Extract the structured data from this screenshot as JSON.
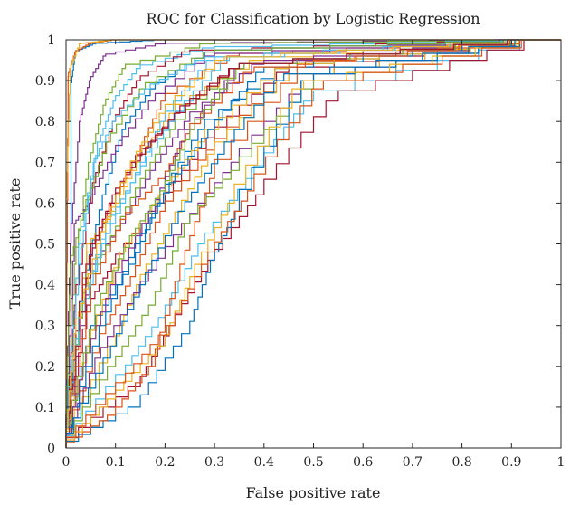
{
  "chart_data": {
    "type": "line",
    "title": "ROC for Classification by Logistic Regression",
    "xlabel": "False positive rate",
    "ylabel": "True positive rate",
    "xlim": [
      0,
      1
    ],
    "ylim": [
      0,
      1
    ],
    "x_ticks": [
      "0",
      "0.1",
      "0.2",
      "0.3",
      "0.4",
      "0.5",
      "0.6",
      "0.7",
      "0.8",
      "0.9",
      "1"
    ],
    "y_ticks": [
      "0",
      "0.1",
      "0.2",
      "0.3",
      "0.4",
      "0.5",
      "0.6",
      "0.7",
      "0.8",
      "0.9",
      "1"
    ],
    "grid": false,
    "legend": "none",
    "palette": [
      "#0072BD",
      "#D95319",
      "#EDB120",
      "#7E2F8E",
      "#77AC30",
      "#4DBEEE",
      "#A2142F"
    ],
    "series": [
      {
        "x": [
          0,
          0.01,
          0.01,
          0.02,
          0.06,
          0.2,
          1
        ],
        "y": [
          0,
          0.5,
          0.88,
          0.97,
          0.99,
          1,
          1
        ]
      },
      {
        "x": [
          0,
          0.005,
          0.02,
          0.05,
          0.1,
          1
        ],
        "y": [
          0,
          0.91,
          0.97,
          0.99,
          1,
          1
        ]
      },
      {
        "x": [
          0,
          0,
          0.01,
          0.03,
          0.1,
          1
        ],
        "y": [
          0,
          0.55,
          0.93,
          0.99,
          1,
          1
        ]
      },
      {
        "x": [
          0,
          0.01,
          0.03,
          0.05,
          0.08,
          0.2,
          1
        ],
        "y": [
          0,
          0.5,
          0.8,
          0.9,
          0.96,
          0.99,
          1
        ]
      },
      {
        "x": [
          0,
          0.02,
          0.05,
          0.08,
          0.12,
          0.3,
          1
        ],
        "y": [
          0,
          0.45,
          0.7,
          0.84,
          0.93,
          0.99,
          1
        ]
      },
      {
        "x": [
          0,
          0.03,
          0.07,
          0.1,
          0.15,
          0.3,
          1
        ],
        "y": [
          0,
          0.5,
          0.75,
          0.85,
          0.93,
          0.98,
          1
        ]
      },
      {
        "x": [
          0,
          0.02,
          0.06,
          0.1,
          0.15,
          0.25,
          1
        ],
        "y": [
          0,
          0.35,
          0.65,
          0.8,
          0.9,
          0.97,
          1
        ]
      },
      {
        "x": [
          0,
          0.04,
          0.08,
          0.12,
          0.18,
          0.3,
          1
        ],
        "y": [
          0,
          0.4,
          0.62,
          0.78,
          0.88,
          0.97,
          1
        ]
      },
      {
        "x": [
          0,
          0.05,
          0.1,
          0.15,
          0.2,
          0.35,
          1
        ],
        "y": [
          0,
          0.48,
          0.6,
          0.72,
          0.85,
          0.96,
          1
        ]
      },
      {
        "x": [
          0,
          0.05,
          0.1,
          0.15,
          0.22,
          0.4,
          1
        ],
        "y": [
          0,
          0.5,
          0.58,
          0.7,
          0.82,
          0.95,
          1
        ]
      },
      {
        "x": [
          0,
          0.06,
          0.12,
          0.18,
          0.25,
          0.4,
          1
        ],
        "y": [
          0,
          0.45,
          0.55,
          0.68,
          0.8,
          0.94,
          1
        ]
      },
      {
        "x": [
          0,
          0.04,
          0.1,
          0.16,
          0.22,
          0.35,
          1
        ],
        "y": [
          0,
          0.38,
          0.52,
          0.66,
          0.78,
          0.93,
          1
        ]
      },
      {
        "x": [
          0,
          0.03,
          0.08,
          0.14,
          0.2,
          0.3,
          1
        ],
        "y": [
          0,
          0.3,
          0.5,
          0.65,
          0.8,
          0.95,
          1
        ]
      },
      {
        "x": [
          0,
          0.05,
          0.1,
          0.2,
          0.3,
          0.45,
          1
        ],
        "y": [
          0,
          0.35,
          0.45,
          0.6,
          0.76,
          0.92,
          1
        ]
      },
      {
        "x": [
          0,
          0.06,
          0.14,
          0.2,
          0.28,
          0.45,
          1
        ],
        "y": [
          0,
          0.3,
          0.45,
          0.62,
          0.78,
          0.93,
          1
        ]
      },
      {
        "x": [
          0,
          0.08,
          0.14,
          0.2,
          0.3,
          0.45,
          1
        ],
        "y": [
          0,
          0.28,
          0.42,
          0.58,
          0.73,
          0.9,
          1
        ]
      },
      {
        "x": [
          0,
          0.1,
          0.15,
          0.22,
          0.3,
          0.45,
          1
        ],
        "y": [
          0,
          0.25,
          0.4,
          0.55,
          0.72,
          0.9,
          1
        ]
      },
      {
        "x": [
          0,
          0.07,
          0.15,
          0.25,
          0.35,
          0.5,
          1
        ],
        "y": [
          0,
          0.22,
          0.38,
          0.55,
          0.7,
          0.9,
          1
        ]
      },
      {
        "x": [
          0,
          0.1,
          0.18,
          0.25,
          0.35,
          0.5,
          1
        ],
        "y": [
          0,
          0.2,
          0.35,
          0.55,
          0.68,
          0.88,
          1
        ]
      },
      {
        "x": [
          0,
          0.12,
          0.2,
          0.28,
          0.38,
          0.5,
          1
        ],
        "y": [
          0,
          0.18,
          0.32,
          0.5,
          0.66,
          0.85,
          1
        ]
      },
      {
        "x": [
          0,
          0.15,
          0.22,
          0.3,
          0.4,
          0.55,
          1
        ],
        "y": [
          0,
          0.15,
          0.3,
          0.46,
          0.62,
          0.85,
          1
        ]
      },
      {
        "x": [
          0,
          0.15,
          0.25,
          0.3,
          0.35,
          0.5,
          1
        ],
        "y": [
          0,
          0.1,
          0.28,
          0.46,
          0.58,
          0.9,
          1
        ]
      },
      {
        "x": [
          0,
          0.1,
          0.18,
          0.24,
          0.3,
          0.5,
          1
        ],
        "y": [
          0,
          0.08,
          0.2,
          0.45,
          0.66,
          0.94,
          1
        ]
      },
      {
        "x": [
          0,
          0.05,
          0.12,
          0.2,
          0.28,
          0.45,
          1
        ],
        "y": [
          0,
          0.25,
          0.48,
          0.62,
          0.75,
          0.93,
          1
        ]
      },
      {
        "x": [
          0,
          0.02,
          0.05,
          0.1,
          0.18,
          0.3,
          1
        ],
        "y": [
          0,
          0.55,
          0.6,
          0.72,
          0.85,
          0.96,
          1
        ]
      },
      {
        "x": [
          0,
          0.01,
          0.04,
          0.09,
          0.16,
          0.3,
          1
        ],
        "y": [
          0,
          0.45,
          0.58,
          0.75,
          0.88,
          0.97,
          1
        ]
      },
      {
        "x": [
          0,
          0.03,
          0.06,
          0.1,
          0.17,
          0.28,
          1
        ],
        "y": [
          0,
          0.45,
          0.7,
          0.8,
          0.88,
          0.95,
          1
        ]
      },
      {
        "x": [
          0,
          0.04,
          0.08,
          0.14,
          0.22,
          0.35,
          1
        ],
        "y": [
          0,
          0.43,
          0.55,
          0.7,
          0.8,
          0.93,
          1
        ]
      },
      {
        "x": [
          0,
          0.08,
          0.15,
          0.22,
          0.3,
          0.4,
          1
        ],
        "y": [
          0,
          0.3,
          0.5,
          0.65,
          0.78,
          0.92,
          1
        ]
      },
      {
        "x": [
          0,
          0.06,
          0.12,
          0.2,
          0.25,
          0.38,
          1
        ],
        "y": [
          0,
          0.4,
          0.56,
          0.66,
          0.77,
          0.92,
          1
        ]
      },
      {
        "x": [
          0,
          0.1,
          0.2,
          0.26,
          0.34,
          0.48,
          1
        ],
        "y": [
          0,
          0.12,
          0.25,
          0.42,
          0.6,
          0.88,
          1
        ]
      },
      {
        "x": [
          0,
          0.04,
          0.1,
          0.18,
          0.24,
          0.36,
          1
        ],
        "y": [
          0,
          0.2,
          0.4,
          0.58,
          0.75,
          0.93,
          1
        ]
      },
      {
        "x": [
          0,
          0.07,
          0.14,
          0.2,
          0.26,
          0.36,
          1
        ],
        "y": [
          0,
          0.35,
          0.52,
          0.63,
          0.78,
          0.93,
          1
        ]
      },
      {
        "x": [
          0,
          0.03,
          0.09,
          0.15,
          0.22,
          0.33,
          1
        ],
        "y": [
          0,
          0.32,
          0.55,
          0.67,
          0.8,
          0.95,
          1
        ]
      },
      {
        "x": [
          0,
          0.06,
          0.1,
          0.16,
          0.23,
          0.35,
          1
        ],
        "y": [
          0,
          0.5,
          0.62,
          0.72,
          0.82,
          0.93,
          1
        ]
      },
      {
        "x": [
          0,
          0.09,
          0.16,
          0.24,
          0.32,
          0.44,
          1
        ],
        "y": [
          0,
          0.22,
          0.4,
          0.58,
          0.72,
          0.9,
          1
        ]
      },
      {
        "x": [
          0,
          0.12,
          0.22,
          0.3,
          0.38,
          0.52,
          1
        ],
        "y": [
          0,
          0.16,
          0.3,
          0.48,
          0.63,
          0.88,
          1
        ]
      },
      {
        "x": [
          0,
          0.02,
          0.07,
          0.13,
          0.2,
          0.32,
          1
        ],
        "y": [
          0,
          0.28,
          0.5,
          0.68,
          0.82,
          0.95,
          1
        ]
      }
    ]
  }
}
